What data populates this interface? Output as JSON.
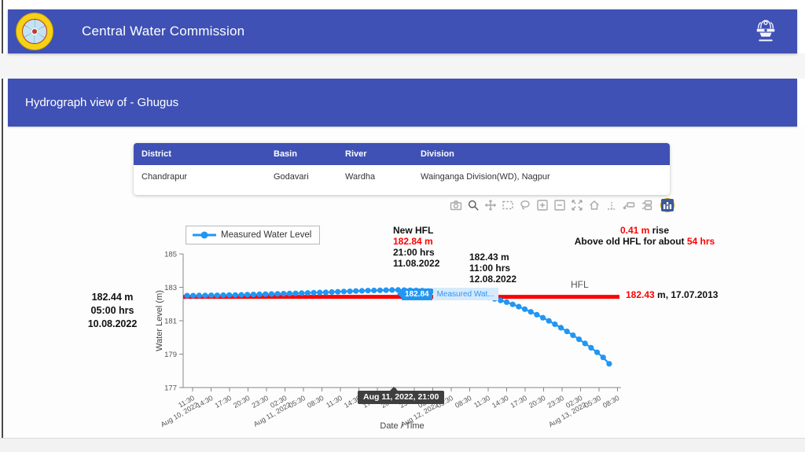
{
  "app": {
    "header_title": "Central Water Commission",
    "page_title": "Hydrograph view of - Ghugus"
  },
  "station_table": {
    "columns": [
      "District",
      "Basin",
      "River",
      "Division"
    ],
    "rows": [
      [
        "Chandrapur",
        "Godavari",
        "Wardha",
        "Wainganga Division(WD), Nagpur"
      ]
    ]
  },
  "toolbar": {
    "icons": [
      "download-plot-icon",
      "zoom-icon",
      "pan-icon",
      "box-select-icon",
      "lasso-select-icon",
      "zoom-in-icon",
      "zoom-out-icon",
      "autoscale-icon",
      "reset-axes-icon",
      "toggle-spikelines-icon",
      "hover-closest-icon",
      "hover-compare-icon",
      "plotly-logo-icon"
    ]
  },
  "chart_data": {
    "type": "line",
    "xlabel": "Date / Time",
    "ylabel": "Water Level (m)",
    "yticks": [
      177,
      179,
      181,
      183,
      185
    ],
    "ylim": [
      176.6,
      185.5
    ],
    "grid": false,
    "legend_position": "top-left",
    "xticks": [
      {
        "t": "11:30",
        "d": "Aug 10, 2022"
      },
      {
        "t": "14:30"
      },
      {
        "t": "17:30"
      },
      {
        "t": "20:30"
      },
      {
        "t": "23:30"
      },
      {
        "t": "02:30",
        "d": "Aug 11, 2022"
      },
      {
        "t": "05:30"
      },
      {
        "t": "08:30"
      },
      {
        "t": "11:30"
      },
      {
        "t": "14:30"
      },
      {
        "t": "17:30"
      },
      {
        "t": "20:30"
      },
      {
        "t": "23:30"
      },
      {
        "t": "02:30",
        "d": "Aug 12, 2022"
      },
      {
        "t": "05:30"
      },
      {
        "t": "08:30"
      },
      {
        "t": "11:30"
      },
      {
        "t": "14:30"
      },
      {
        "t": "17:30"
      },
      {
        "t": "20:30"
      },
      {
        "t": "23:30"
      },
      {
        "t": "02:30",
        "d": "Aug 13, 2022"
      },
      {
        "t": "05:30"
      },
      {
        "t": "08:30"
      }
    ],
    "hfl": {
      "value": 182.43,
      "label": "HFL",
      "color": "#ff0000",
      "date": "17.07.2013"
    },
    "series": [
      {
        "name": "Measured Water Level",
        "color": "#2196f3",
        "start": "Aug 10, 2022 10:30",
        "interval_hours": 1,
        "values": [
          182.5,
          182.5,
          182.51,
          182.51,
          182.52,
          182.52,
          182.53,
          182.54,
          182.54,
          182.55,
          182.56,
          182.57,
          182.58,
          182.59,
          182.6,
          182.61,
          182.62,
          182.63,
          182.64,
          182.65,
          182.66,
          182.68,
          182.69,
          182.7,
          182.72,
          182.73,
          182.75,
          182.76,
          182.78,
          182.79,
          182.8,
          182.81,
          182.82,
          182.83,
          182.84,
          182.84,
          182.83,
          182.82,
          182.81,
          182.8,
          182.78,
          182.76,
          182.74,
          182.71,
          182.68,
          182.64,
          182.6,
          182.55,
          182.5,
          182.43,
          182.38,
          182.31,
          182.22,
          182.11,
          181.98,
          181.84,
          181.69,
          181.53,
          181.36,
          181.18,
          180.99,
          180.79,
          180.58,
          180.36,
          180.13,
          179.89,
          179.64,
          179.38,
          179.11,
          178.8,
          178.42
        ]
      }
    ]
  },
  "hover": {
    "y_badge": "182.84",
    "trace_label": "Measured Wat...",
    "x_tooltip": "Aug 11, 2022, 21:00"
  },
  "annotations": {
    "new_hfl": {
      "line1": "New HFL",
      "line2": "182.84 m",
      "line3": "21:00 hrs",
      "line4": "11.08.2022"
    },
    "hfl_equal": {
      "line1": "182.43 m",
      "line2": "11:00 hrs",
      "line3": "12.08.2022"
    },
    "rise": {
      "red1": "0.41 m",
      "black1": " rise",
      "black2": "Above old HFL for about ",
      "red2": "54 hrs"
    },
    "rise_start": {
      "line1": "182.44 m",
      "line2": "05:00 hrs",
      "line3": "10.08.2022"
    },
    "old_hfl_value": {
      "red": "182.43",
      "black": " m, 17.07.2013"
    }
  },
  "colors": {
    "primary": "#3f51b5",
    "hfl_red": "#ff0000",
    "series_blue": "#2196f3"
  }
}
